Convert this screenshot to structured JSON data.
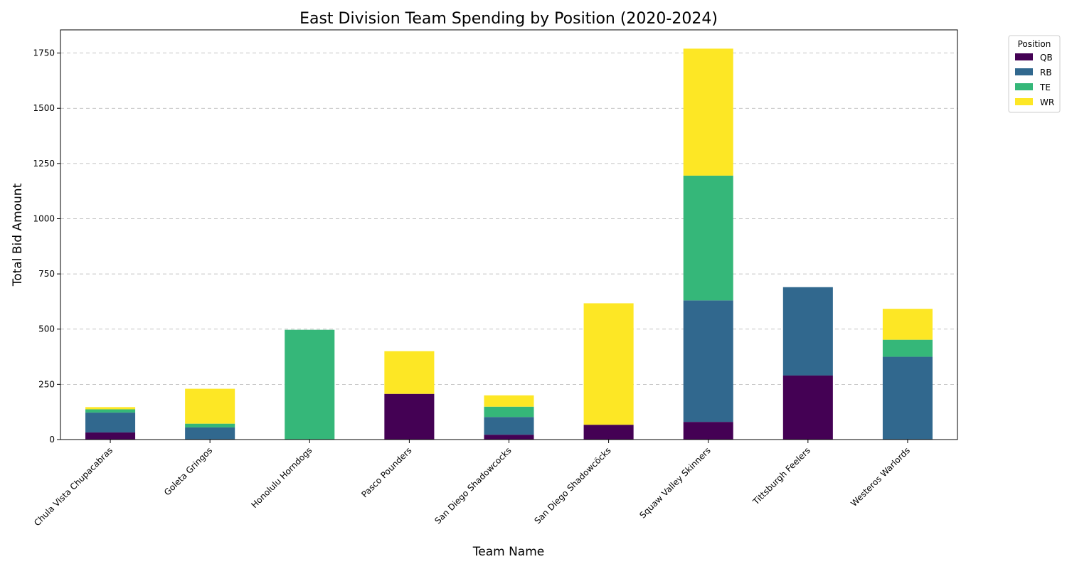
{
  "chart_data": {
    "type": "bar",
    "stacked": true,
    "title": "East Division Team Spending by Position (2020-2024)",
    "xlabel": "Team Name",
    "ylabel": "Total Bid Amount",
    "ylim": [
      0,
      1855
    ],
    "yticks": [
      0,
      250,
      500,
      750,
      1000,
      1250,
      1500,
      1750
    ],
    "grid": "y-dashed",
    "legend_title": "Position",
    "legend_placement": "outside-top-right",
    "categories": [
      "Chula Vista Chupacabras",
      "Goleta Gringos",
      "Honolulu Horndogs",
      "Pasco Pounders",
      "San Diego Shadowcocks",
      "San Diego Shadowcöcks",
      "Squaw Valley Skinners",
      "Tittsburgh Feelers",
      "Westeros  Warlords"
    ],
    "series": [
      {
        "name": "QB",
        "color": "#440154",
        "values": [
          32,
          0,
          0,
          207,
          22,
          67,
          80,
          290,
          0
        ]
      },
      {
        "name": "RB",
        "color": "#31688e",
        "values": [
          90,
          55,
          0,
          0,
          80,
          0,
          550,
          400,
          375
        ]
      },
      {
        "name": "TE",
        "color": "#35b779",
        "values": [
          15,
          17,
          497,
          0,
          47,
          0,
          565,
          0,
          77
        ]
      },
      {
        "name": "WR",
        "color": "#fde725",
        "values": [
          10,
          158,
          0,
          193,
          51,
          550,
          575,
          0,
          140
        ]
      }
    ]
  }
}
